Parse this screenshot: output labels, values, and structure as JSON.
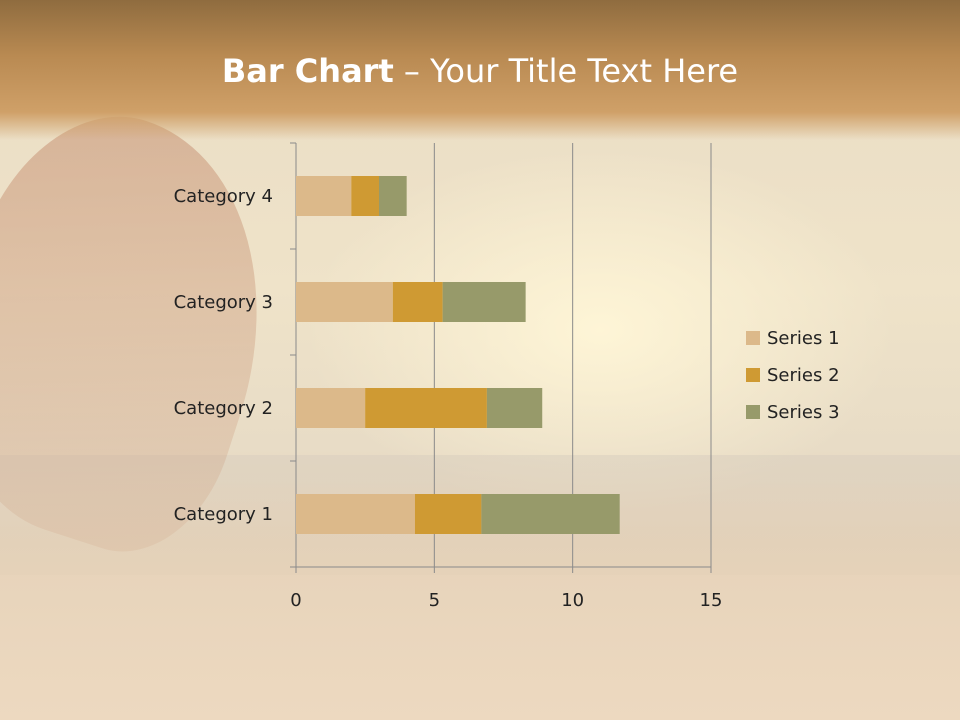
{
  "title": {
    "bold": "Bar Chart",
    "rest": " – Your Title Text Here"
  },
  "chart_data": {
    "type": "bar",
    "orientation": "horizontal",
    "stacked": true,
    "categories": [
      "Category 1",
      "Category 2",
      "Category 3",
      "Category 4"
    ],
    "series": [
      {
        "name": "Series 1",
        "values": [
          4.3,
          2.5,
          3.5,
          2
        ],
        "color": "#dcb98a"
      },
      {
        "name": "Series 2",
        "values": [
          2.4,
          4.4,
          1.8,
          1
        ],
        "color": "#cf9a33"
      },
      {
        "name": "Series 3",
        "values": [
          5,
          2,
          3,
          1
        ],
        "color": "#979a6a"
      }
    ],
    "xlim": [
      0,
      15
    ],
    "xticks": [
      0,
      5,
      10,
      15
    ],
    "grid": true,
    "legend": "right"
  }
}
